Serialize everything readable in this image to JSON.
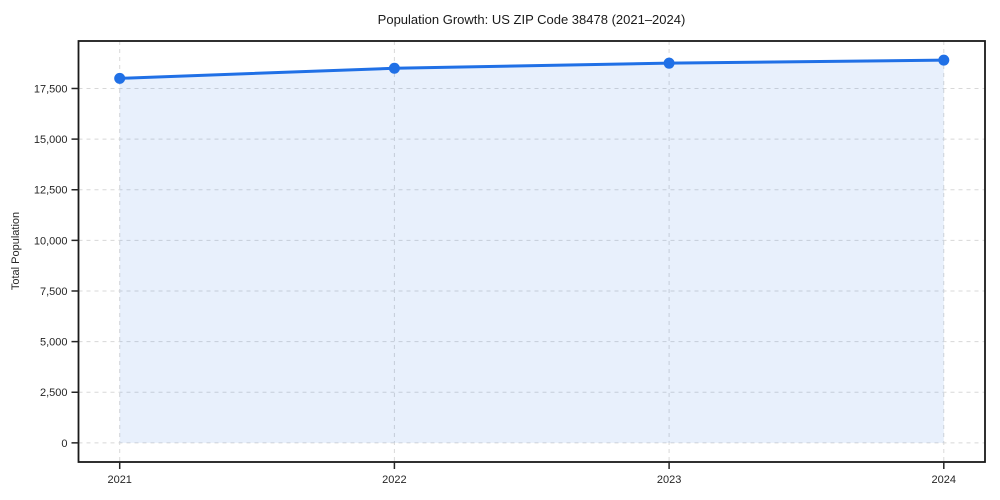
{
  "chart": {
    "title": "Population Growth: US ZIP Code 38478 (2021–2024)",
    "ylabel": "Total Population"
  },
  "chart_data": {
    "type": "line",
    "x": [
      2021,
      2022,
      2023,
      2024
    ],
    "categories": [
      "2021",
      "2022",
      "2023",
      "2024"
    ],
    "series": [
      {
        "name": "Total Population",
        "values": [
          18000,
          18500,
          18750,
          18900
        ]
      }
    ],
    "title": "Population Growth: US ZIP Code 38478 (2021–2024)",
    "xlabel": "",
    "ylabel": "Total Population",
    "xlim": [
      2020.85,
      2024.15
    ],
    "ylim": [
      -945,
      19845
    ],
    "yticks": [
      0,
      2500,
      5000,
      7500,
      10000,
      12500,
      15000,
      17500
    ],
    "xticks": [
      2021,
      2022,
      2023,
      2024
    ],
    "grid": true,
    "grid_style": "dashed",
    "legend_position": "none",
    "marker": "circle",
    "area_fill_to": 0,
    "colors": {
      "line": "#2070e6",
      "marker": "#2070e6",
      "area_fill": "rgba(32,112,230,0.10)",
      "gridline": "#d8d8d8",
      "spine": "#1a1a1a",
      "tick": "#262626",
      "background": "#ffffff"
    }
  }
}
